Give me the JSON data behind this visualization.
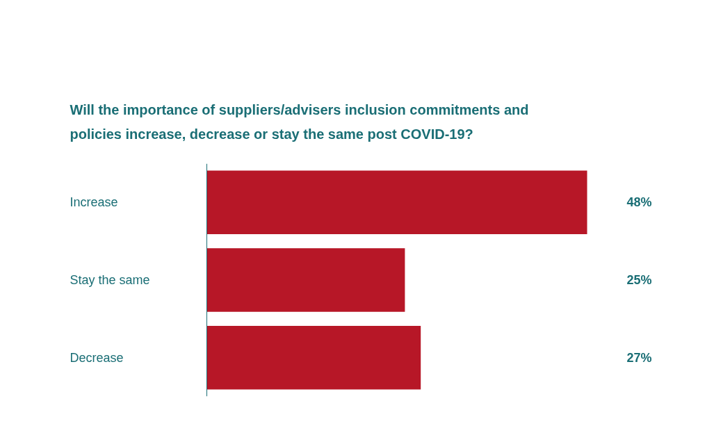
{
  "chart_data": {
    "type": "bar",
    "orientation": "horizontal",
    "title": "Will the importance of suppliers/advisers inclusion commitments and policies increase, decrease or stay the same post COVID-19?",
    "categories": [
      "Increase",
      "Stay the same",
      "Decrease"
    ],
    "values": [
      48,
      25,
      27
    ],
    "value_labels": [
      "48%",
      "25%",
      "27%"
    ],
    "color": "#b71727",
    "grid": false
  }
}
